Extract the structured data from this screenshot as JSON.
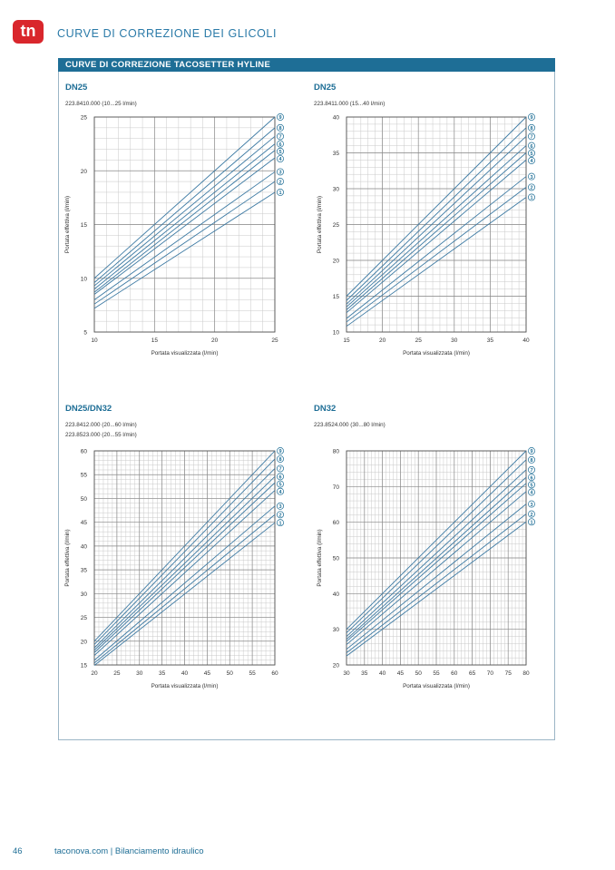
{
  "brand": {
    "logo_text": "tn",
    "accent": "#d9262c",
    "primary": "#1e6e96",
    "line": "#3d7aa3"
  },
  "header": {
    "title": "CURVE DI CORREZIONE DEI GLICOLI"
  },
  "panel": {
    "title": "CURVE DI CORREZIONE TACOSETTER HYLINE"
  },
  "footer": {
    "page": "46",
    "text": "taconova.com  |  Bilanciamento idraulico"
  },
  "chart_data": [
    {
      "type": "line",
      "title": "DN25",
      "codes": [
        "223.8410.000  (10...25 l/min)"
      ],
      "xlabel": "Portata visualizzata (l/min)",
      "ylabel": "Portata effettiva (l/min)",
      "xlim": [
        10,
        25
      ],
      "ylim": [
        5,
        25
      ],
      "xticks": [
        10,
        15,
        20,
        25
      ],
      "yticks": [
        5,
        10,
        15,
        20,
        25
      ],
      "series": [
        {
          "name": "9",
          "x": [
            10,
            25
          ],
          "y": [
            10.0,
            25.0
          ]
        },
        {
          "name": "8",
          "x": [
            10,
            25
          ],
          "y": [
            9.6,
            24.0
          ]
        },
        {
          "name": "7",
          "x": [
            10,
            25
          ],
          "y": [
            9.3,
            23.2
          ]
        },
        {
          "name": "6",
          "x": [
            10,
            25
          ],
          "y": [
            9.0,
            22.5
          ]
        },
        {
          "name": "5",
          "x": [
            10,
            25
          ],
          "y": [
            8.7,
            21.9
          ]
        },
        {
          "name": "4",
          "x": [
            10,
            25
          ],
          "y": [
            8.5,
            21.2
          ]
        },
        {
          "name": "3",
          "x": [
            10,
            25
          ],
          "y": [
            8.0,
            19.9
          ]
        },
        {
          "name": "2",
          "x": [
            10,
            25
          ],
          "y": [
            7.6,
            19.0
          ]
        },
        {
          "name": "1",
          "x": [
            10,
            25
          ],
          "y": [
            7.2,
            18.0
          ]
        }
      ]
    },
    {
      "type": "line",
      "title": "DN25",
      "codes": [
        "223.8411.000  (15...40 l/min)"
      ],
      "xlabel": "Portata visualizzata (l/min)",
      "ylabel": "Portata effettiva (l/min)",
      "xlim": [
        15,
        40
      ],
      "ylim": [
        10,
        40
      ],
      "xticks": [
        15,
        20,
        25,
        30,
        35,
        40
      ],
      "yticks": [
        10,
        15,
        20,
        25,
        30,
        35,
        40
      ],
      "series": [
        {
          "name": "9",
          "x": [
            15,
            40
          ],
          "y": [
            15.0,
            40.0
          ]
        },
        {
          "name": "8",
          "x": [
            15,
            40
          ],
          "y": [
            14.4,
            38.5
          ]
        },
        {
          "name": "7",
          "x": [
            15,
            40
          ],
          "y": [
            13.9,
            37.3
          ]
        },
        {
          "name": "6",
          "x": [
            15,
            40
          ],
          "y": [
            13.5,
            36.0
          ]
        },
        {
          "name": "5",
          "x": [
            15,
            40
          ],
          "y": [
            13.1,
            35.0
          ]
        },
        {
          "name": "4",
          "x": [
            15,
            40
          ],
          "y": [
            12.7,
            34.0
          ]
        },
        {
          "name": "3",
          "x": [
            15,
            40
          ],
          "y": [
            11.9,
            31.7
          ]
        },
        {
          "name": "2",
          "x": [
            15,
            40
          ],
          "y": [
            11.4,
            30.2
          ]
        },
        {
          "name": "1",
          "x": [
            15,
            40
          ],
          "y": [
            10.8,
            28.8
          ]
        }
      ]
    },
    {
      "type": "line",
      "title": "DN25/DN32",
      "codes": [
        "223.8412.000  (20...60 l/min)",
        "223.8523.000  (20...55 l/min)"
      ],
      "xlabel": "Portata visualizzata (l/min)",
      "ylabel": "Portata effettiva (l/min)",
      "xlim": [
        20,
        60
      ],
      "ylim": [
        15,
        60
      ],
      "xticks": [
        20,
        25,
        30,
        35,
        40,
        45,
        50,
        55,
        60
      ],
      "yticks": [
        15,
        20,
        25,
        30,
        35,
        40,
        45,
        50,
        55,
        60
      ],
      "series": [
        {
          "name": "9",
          "x": [
            20,
            60
          ],
          "y": [
            20.0,
            60.0
          ]
        },
        {
          "name": "8",
          "x": [
            20,
            60
          ],
          "y": [
            19.3,
            58.3
          ]
        },
        {
          "name": "7",
          "x": [
            20,
            60
          ],
          "y": [
            18.6,
            56.3
          ]
        },
        {
          "name": "6",
          "x": [
            20,
            60
          ],
          "y": [
            18.1,
            54.6
          ]
        },
        {
          "name": "5",
          "x": [
            20,
            60
          ],
          "y": [
            17.6,
            53.3
          ]
        },
        {
          "name": "4",
          "x": [
            20,
            60
          ],
          "y": [
            17.0,
            51.7
          ]
        },
        {
          "name": "3",
          "x": [
            20,
            60
          ],
          "y": [
            16.0,
            48.4
          ]
        },
        {
          "name": "2",
          "x": [
            20,
            60
          ],
          "y": [
            15.4,
            46.6
          ]
        },
        {
          "name": "1",
          "x": [
            20,
            60
          ],
          "y": [
            14.9,
            44.9
          ]
        }
      ]
    },
    {
      "type": "line",
      "title": "DN32",
      "codes": [
        "223.8524.000  (30...80 l/min)"
      ],
      "xlabel": "Portata visualizzata (l/min)",
      "ylabel": "Portata effettiva (l/min)",
      "xlim": [
        30,
        80
      ],
      "ylim": [
        20,
        80
      ],
      "xticks": [
        30,
        35,
        40,
        45,
        50,
        55,
        60,
        65,
        70,
        75,
        80
      ],
      "yticks": [
        20,
        30,
        40,
        50,
        60,
        70,
        80
      ],
      "series": [
        {
          "name": "9",
          "x": [
            30,
            80
          ],
          "y": [
            30.0,
            80.0
          ]
        },
        {
          "name": "8",
          "x": [
            30,
            80
          ],
          "y": [
            29.0,
            77.5
          ]
        },
        {
          "name": "7",
          "x": [
            30,
            80
          ],
          "y": [
            28.0,
            74.7
          ]
        },
        {
          "name": "6",
          "x": [
            30,
            80
          ],
          "y": [
            27.2,
            72.6
          ]
        },
        {
          "name": "5",
          "x": [
            30,
            80
          ],
          "y": [
            26.6,
            70.9
          ]
        },
        {
          "name": "4",
          "x": [
            30,
            80
          ],
          "y": [
            25.7,
            68.6
          ]
        },
        {
          "name": "3",
          "x": [
            30,
            80
          ],
          "y": [
            24.4,
            65.1
          ]
        },
        {
          "name": "2",
          "x": [
            30,
            80
          ],
          "y": [
            23.4,
            62.3
          ]
        },
        {
          "name": "1",
          "x": [
            30,
            80
          ],
          "y": [
            22.5,
            60.1
          ]
        }
      ]
    }
  ]
}
